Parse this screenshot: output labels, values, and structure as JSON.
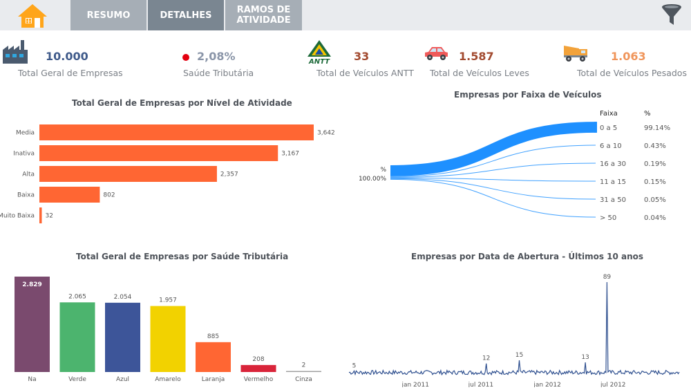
{
  "nav": {
    "tabs": [
      {
        "label": "RESUMO"
      },
      {
        "label": "DETALHES"
      },
      {
        "label": "RAMOS DE ATIVIDADE"
      }
    ]
  },
  "colors": {
    "topbar": "#e9ebee",
    "orange_bar": "#ff6633",
    "sankey_blue": "#1e90ff",
    "line_blue": "#2e4f8f"
  },
  "kpis": [
    {
      "icon": "factory-icon",
      "value": "10.000",
      "label": "Total Geral de Empresas",
      "color": "#3f5a8a"
    },
    {
      "icon": "red-dot-icon",
      "value": "2,08%",
      "label": "Saúde Tributária",
      "color": "#8a95a8"
    },
    {
      "icon": "antt-logo-icon",
      "value": "33",
      "label": "Total de Veículos ANTT",
      "color": "#a24a2f"
    },
    {
      "icon": "car-icon",
      "value": "1.587",
      "label": "Total de Veículos Leves",
      "color": "#a24a2f"
    },
    {
      "icon": "truck-icon",
      "value": "1.063",
      "label": "Total de Veículos Pesados",
      "color": "#f0955a"
    }
  ],
  "chart_data": [
    {
      "type": "bar",
      "orientation": "horizontal",
      "title": "Total Geral de Empresas por Nível de Atividade",
      "categories": [
        "Media",
        "Inativa",
        "Alta",
        "Baixa",
        "Muito Baixa"
      ],
      "values": [
        3642,
        3167,
        2357,
        802,
        32
      ],
      "value_labels": [
        "3,642",
        "3,167",
        "2,357",
        "802",
        "32"
      ],
      "xlim": [
        0,
        3642
      ],
      "color": "#ff6633"
    },
    {
      "type": "sankey",
      "title": "Empresas por Faixa de Veículos",
      "source_label": "%",
      "source_value": "100.00%",
      "header_faixa": "Faixa",
      "header_pct": "%",
      "rows": [
        {
          "faixa": "0 a 5",
          "pct": "99.14%",
          "value": 99.14
        },
        {
          "faixa": "6 a 10",
          "pct": "0.43%",
          "value": 0.43
        },
        {
          "faixa": "16 a 30",
          "pct": "0.19%",
          "value": 0.19
        },
        {
          "faixa": "11 a 15",
          "pct": "0.15%",
          "value": 0.15
        },
        {
          "faixa": "31 a 50",
          "pct": "0.05%",
          "value": 0.05
        },
        {
          "faixa": "> 50",
          "pct": "0.04%",
          "value": 0.04
        }
      ]
    },
    {
      "type": "bar",
      "title": "Total Geral de Empresas por Saúde Tributária",
      "categories": [
        "Na",
        "Verde",
        "Azul",
        "Amarelo",
        "Laranja",
        "Vermelho",
        "Cinza"
      ],
      "values": [
        2829,
        2065,
        2054,
        1957,
        885,
        208,
        2
      ],
      "value_labels": [
        "2.829",
        "2.065",
        "2.054",
        "1.957",
        "885",
        "208",
        "2"
      ],
      "colors": [
        "#7a4a6e",
        "#4cb46e",
        "#3d5599",
        "#f2d200",
        "#ff6633",
        "#d9243a",
        "#a0a0a0"
      ],
      "ylim": [
        0,
        2829
      ]
    },
    {
      "type": "line",
      "title": "Empresas por Data de Abertura - Últimos 10 anos",
      "x_ticks": [
        "jan 2011",
        "jul 2011",
        "jan 2012",
        "jul 2012"
      ],
      "annotations": [
        {
          "label": "5",
          "x": "2010-07",
          "y": 5
        },
        {
          "label": "12",
          "x": "2011-07",
          "y": 12
        },
        {
          "label": "15",
          "x": "2011-10",
          "y": 15
        },
        {
          "label": "13",
          "x": "2012-04",
          "y": 13
        },
        {
          "label": "89",
          "x": "2012-06",
          "y": 89
        }
      ],
      "ylim": [
        0,
        89
      ],
      "baseline": 3,
      "color": "#2e4f8f"
    }
  ]
}
